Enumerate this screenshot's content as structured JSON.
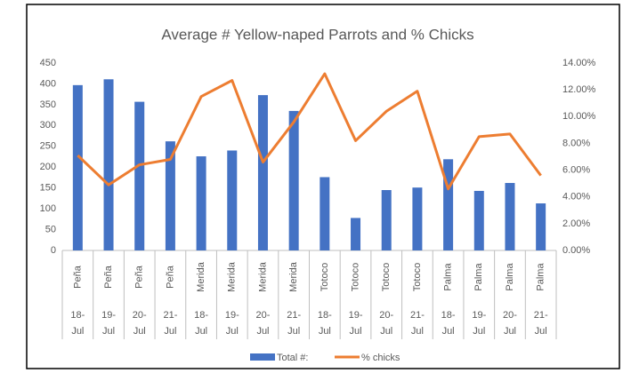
{
  "chart_data": {
    "type": "bar_line",
    "title": "Average # Yellow-naped Parrots and % Chicks",
    "categories": [
      "18-Jul",
      "19-Jul",
      "20-Jul",
      "21-Jul",
      "18-Jul",
      "19-Jul",
      "20-Jul",
      "21-Jul",
      "18-Jul",
      "19-Jul",
      "20-Jul",
      "21-Jul",
      "18-Jul",
      "19-Jul",
      "20-Jul",
      "21-Jul"
    ],
    "sites": [
      "Peña",
      "Peña",
      "Peña",
      "Peña",
      "Merida",
      "Merida",
      "Merida",
      "Merida",
      "Totoco",
      "Totoco",
      "Totoco",
      "Totoco",
      "Palma",
      "Palma",
      "Palma",
      "Palma"
    ],
    "series": [
      {
        "name": "Total #:",
        "type": "bar",
        "color": "#4472c4",
        "values": [
          397,
          411,
          357,
          262,
          226,
          240,
          373,
          335,
          176,
          78,
          145,
          151,
          219,
          143,
          162,
          113
        ]
      },
      {
        "name": "% chicks",
        "type": "line",
        "axis": "y2",
        "color": "#ed7d31",
        "values": [
          7.1,
          4.9,
          6.4,
          6.8,
          11.5,
          12.7,
          6.6,
          9.6,
          13.2,
          8.2,
          10.4,
          11.9,
          4.6,
          8.5,
          8.7,
          5.6
        ]
      }
    ],
    "ylim": [
      0,
      450
    ],
    "yticks": [
      0,
      50,
      100,
      150,
      200,
      250,
      300,
      350,
      400,
      450
    ],
    "y2lim": [
      0,
      14
    ],
    "y2ticks": [
      {
        "value": 0,
        "label": "0.00%"
      },
      {
        "value": 2,
        "label": "2.00%"
      },
      {
        "value": 4,
        "label": "4.00%"
      },
      {
        "value": 6,
        "label": "6.00%"
      },
      {
        "value": 8,
        "label": "8.00%"
      },
      {
        "value": 10,
        "label": "10.00%"
      },
      {
        "value": 12,
        "label": "12.00%"
      },
      {
        "value": 14,
        "label": "14.00%"
      }
    ],
    "grid": false,
    "legend": "bottom"
  }
}
